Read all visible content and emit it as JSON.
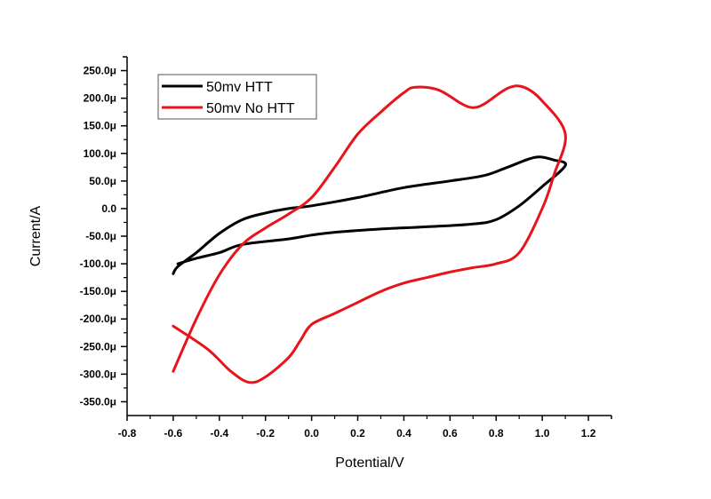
{
  "chart_data": {
    "type": "line",
    "title": "",
    "xlabel": "Potential/V",
    "ylabel": "Current/A",
    "xlim": [
      -0.8,
      1.3
    ],
    "ylim": [
      -375,
      275
    ],
    "y_unit_suffix": "μ",
    "grid": false,
    "legend_position": "top-left",
    "x_ticks": [
      -0.8,
      -0.6,
      -0.4,
      -0.2,
      0.0,
      0.2,
      0.4,
      0.6,
      0.8,
      1.0,
      1.2
    ],
    "x_tick_labels": [
      "-0.8",
      "-0.6",
      "-0.4",
      "-0.2",
      "0.0",
      "0.2",
      "0.4",
      "0.6",
      "0.8",
      "1.0",
      "1.2"
    ],
    "y_ticks": [
      250,
      200,
      150,
      100,
      50,
      0,
      -50,
      -100,
      -150,
      -200,
      -250,
      -300,
      -350
    ],
    "y_tick_labels": [
      "250.0μ",
      "200.0μ",
      "150.0μ",
      "100.0μ",
      "50.0μ",
      "0.0",
      "-50.0μ",
      "-100.0μ",
      "-150.0μ",
      "-200.0μ",
      "-250.0μ",
      "-300.0μ",
      "-350.0μ"
    ],
    "series": [
      {
        "name": "50mv HTT",
        "color": "#000000",
        "x": [
          -0.6,
          -0.58,
          -0.5,
          -0.4,
          -0.3,
          -0.2,
          -0.1,
          0.0,
          0.2,
          0.4,
          0.6,
          0.75,
          0.85,
          0.97,
          1.05,
          1.1,
          1.0,
          0.9,
          0.8,
          0.7,
          0.5,
          0.3,
          0.1,
          0.0,
          -0.1,
          -0.3,
          -0.4,
          -0.5,
          -0.58
        ],
        "y": [
          -118,
          -105,
          -80,
          -45,
          -20,
          -8,
          0,
          5,
          20,
          38,
          50,
          60,
          75,
          93,
          88,
          78,
          40,
          5,
          -20,
          -28,
          -33,
          -37,
          -43,
          -48,
          -55,
          -65,
          -80,
          -90,
          -100
        ]
      },
      {
        "name": "50mv No HTT",
        "color": "#e8141c",
        "x": [
          -0.6,
          -0.5,
          -0.4,
          -0.3,
          -0.2,
          -0.1,
          0.0,
          0.1,
          0.2,
          0.3,
          0.4,
          0.45,
          0.55,
          0.65,
          0.7,
          0.75,
          0.85,
          0.92,
          1.0,
          1.1,
          1.05,
          1.0,
          0.9,
          0.8,
          0.7,
          0.6,
          0.5,
          0.4,
          0.3,
          0.2,
          0.1,
          0.0,
          -0.05,
          -0.1,
          -0.2,
          -0.27,
          -0.35,
          -0.45,
          -0.6
        ],
        "y": [
          -295,
          -200,
          -120,
          -65,
          -35,
          -10,
          20,
          75,
          135,
          175,
          210,
          220,
          215,
          190,
          183,
          190,
          218,
          220,
          195,
          135,
          60,
          0,
          -80,
          -100,
          -107,
          -115,
          -125,
          -135,
          -150,
          -170,
          -190,
          -210,
          -240,
          -270,
          -305,
          -315,
          -295,
          -255,
          -213
        ]
      }
    ]
  }
}
